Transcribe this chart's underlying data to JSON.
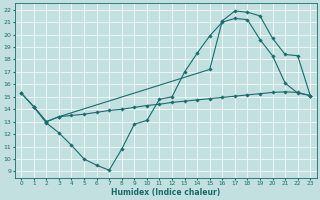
{
  "xlabel": "Humidex (Indice chaleur)",
  "bg_color": "#c2e0e0",
  "line_color": "#1a6b6b",
  "xlim": [
    -0.5,
    23.5
  ],
  "ylim": [
    8.5,
    22.5
  ],
  "xticks": [
    0,
    1,
    2,
    3,
    4,
    5,
    6,
    7,
    8,
    9,
    10,
    11,
    12,
    13,
    14,
    15,
    16,
    17,
    18,
    19,
    20,
    21,
    22,
    23
  ],
  "yticks": [
    9,
    10,
    11,
    12,
    13,
    14,
    15,
    16,
    17,
    18,
    19,
    20,
    21,
    22
  ],
  "curve1_x": [
    0,
    1,
    2,
    3,
    4,
    5,
    6,
    7,
    8,
    9,
    10,
    11,
    12,
    13,
    14,
    15,
    16,
    17,
    18,
    19,
    20,
    21,
    22,
    23
  ],
  "curve1_y": [
    15.3,
    14.2,
    12.9,
    12.1,
    11.1,
    10.0,
    9.5,
    9.1,
    10.8,
    12.8,
    13.1,
    14.8,
    15.0,
    17.0,
    18.5,
    19.9,
    21.0,
    21.3,
    21.2,
    19.6,
    18.3,
    16.1,
    15.3,
    15.1
  ],
  "curve2_x": [
    0,
    1,
    2,
    3,
    15,
    16,
    17,
    18,
    19,
    20,
    21,
    22,
    23
  ],
  "curve2_y": [
    15.3,
    14.2,
    13.0,
    13.4,
    17.2,
    21.1,
    21.9,
    21.8,
    21.5,
    19.7,
    18.4,
    18.3,
    15.1
  ],
  "curve3_x": [
    1,
    2,
    3,
    4,
    5,
    6,
    7,
    8,
    9,
    10,
    11,
    12,
    13,
    14,
    15,
    16,
    17,
    18,
    19,
    20,
    21,
    22,
    23
  ],
  "curve3_y": [
    14.2,
    13.0,
    13.4,
    13.5,
    13.6,
    13.75,
    13.9,
    14.0,
    14.15,
    14.3,
    14.4,
    14.55,
    14.65,
    14.75,
    14.85,
    14.95,
    15.05,
    15.15,
    15.25,
    15.35,
    15.4,
    15.35,
    15.1
  ]
}
